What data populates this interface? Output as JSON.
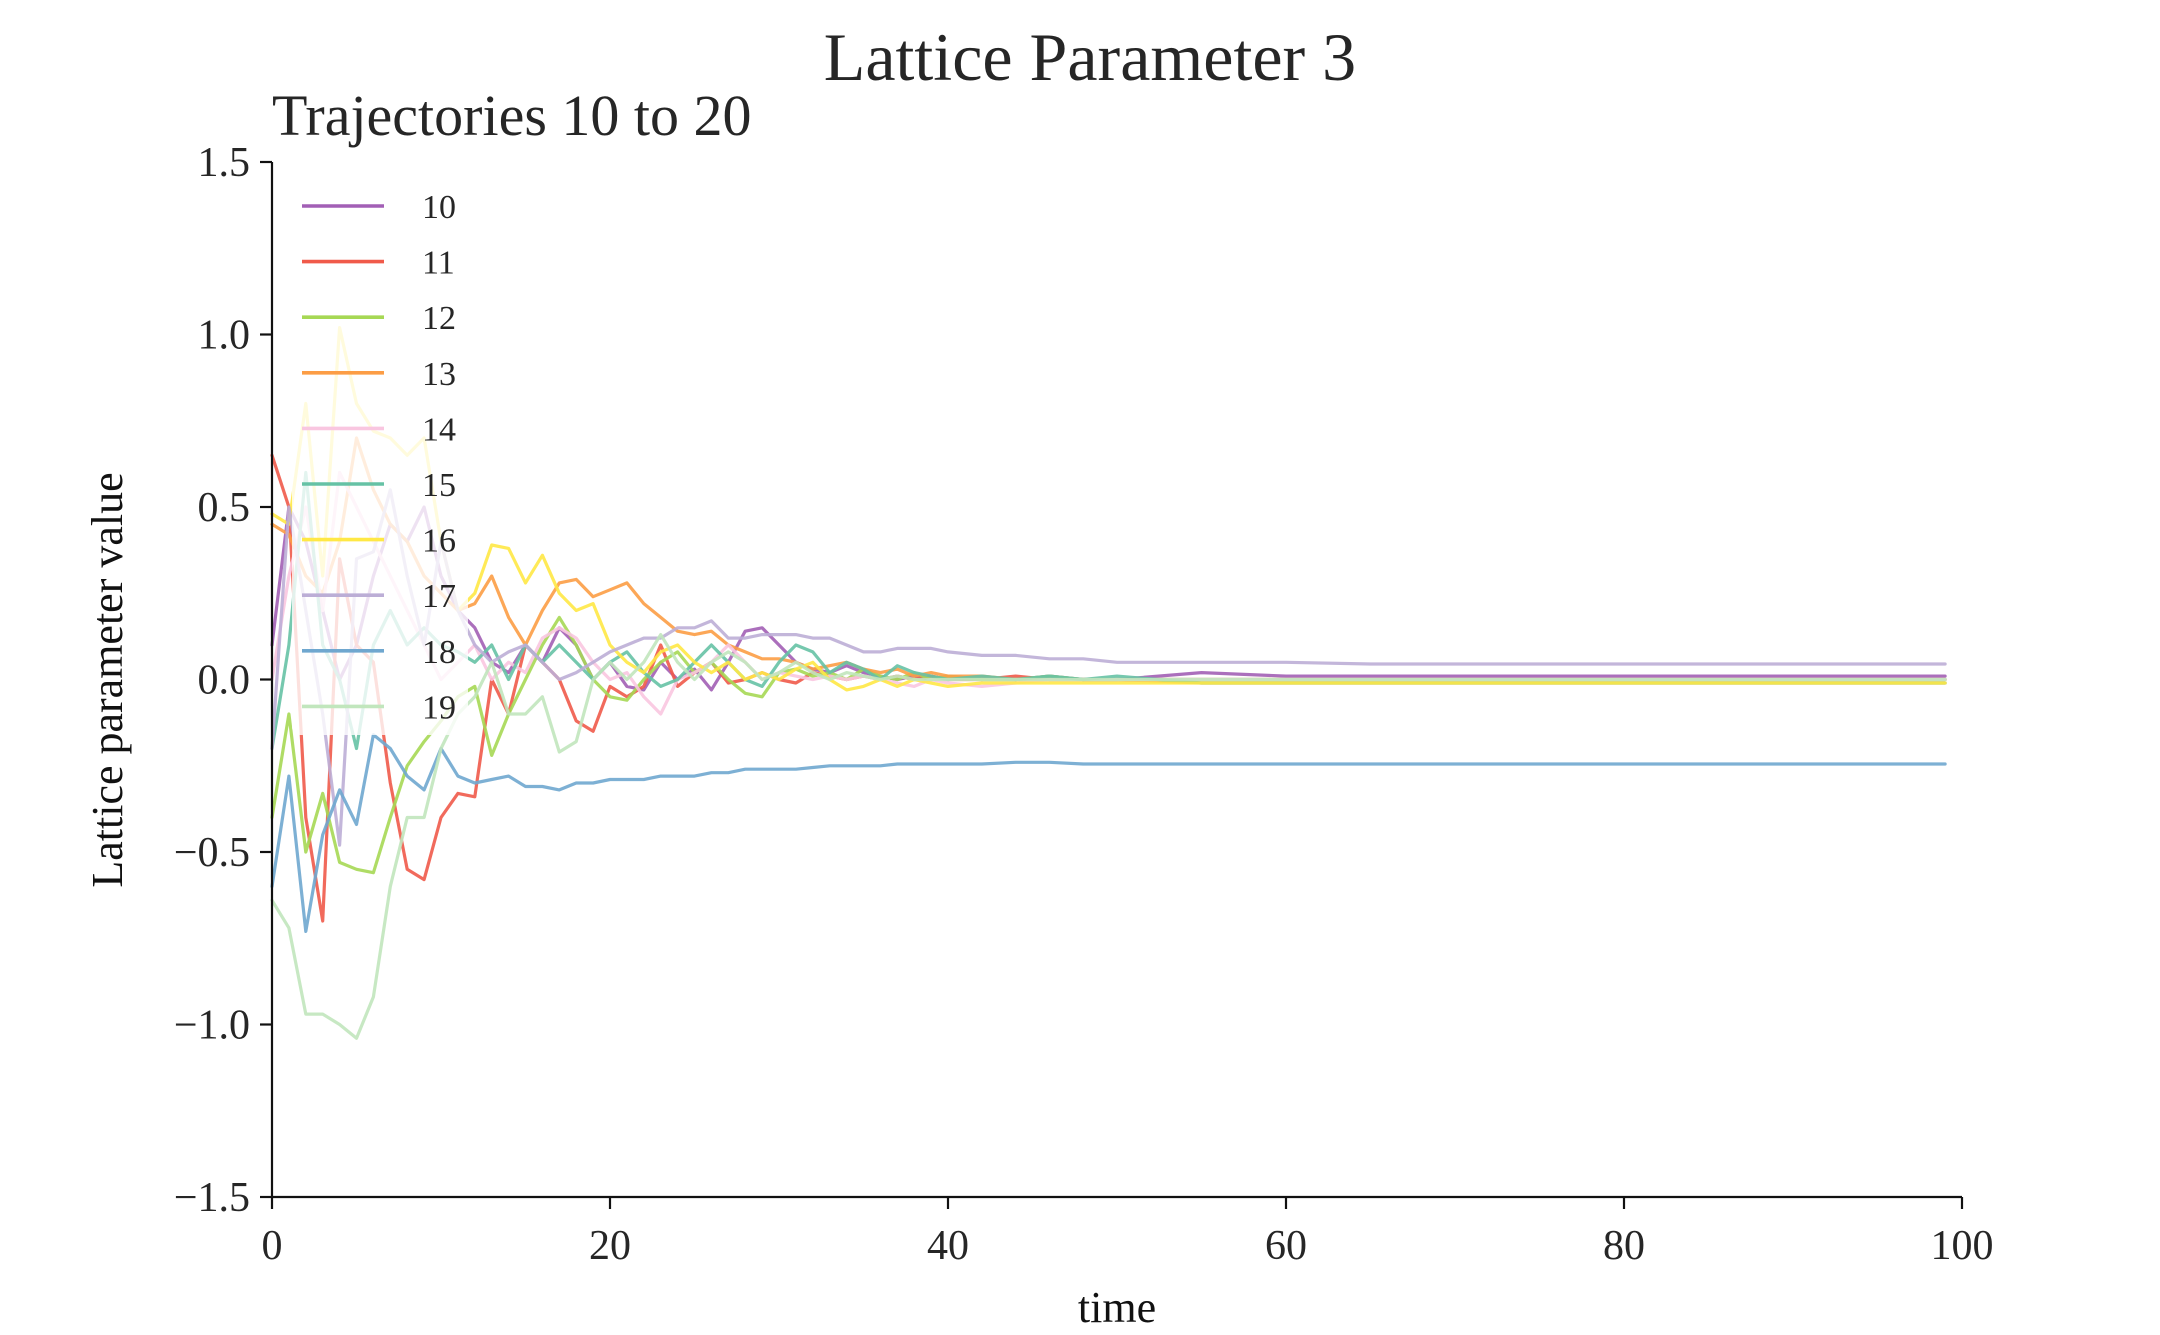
{
  "chart_data": {
    "type": "line",
    "title": "Lattice Parameter 3",
    "subtitle": "Trajectories 10 to 20",
    "xlabel": "time",
    "ylabel": "Lattice parameter value",
    "xlim": [
      0,
      100
    ],
    "ylim": [
      -1.5,
      1.5
    ],
    "xticks": [
      0,
      20,
      40,
      60,
      80,
      100
    ],
    "yticks": [
      -1.5,
      -1.0,
      -0.5,
      0.0,
      0.5,
      1.0,
      1.5
    ],
    "xtick_labels": [
      "0",
      "20",
      "40",
      "60",
      "80",
      "100"
    ],
    "ytick_labels": [
      "−1.5",
      "−1.0",
      "−0.5",
      "0.0",
      "0.5",
      "1.0",
      "1.5"
    ],
    "grid": false,
    "legend_position": "upper-left",
    "x": [
      0,
      1,
      2,
      3,
      4,
      5,
      6,
      7,
      8,
      9,
      10,
      11,
      12,
      13,
      14,
      15,
      16,
      17,
      18,
      19,
      20,
      21,
      22,
      23,
      24,
      25,
      26,
      27,
      28,
      29,
      30,
      31,
      32,
      33,
      34,
      35,
      36,
      37,
      38,
      39,
      40,
      42,
      44,
      46,
      48,
      50,
      55,
      60,
      65,
      70,
      75,
      80,
      85,
      90,
      95,
      99
    ],
    "series": [
      {
        "name": "10",
        "color": "#a25fb5",
        "values": [
          0.1,
          0.5,
          0.4,
          0.2,
          0.0,
          0.1,
          0.3,
          0.45,
          0.4,
          0.5,
          0.3,
          0.2,
          0.15,
          0.05,
          0.02,
          0.1,
          0.05,
          0.15,
          0.1,
          0.0,
          0.05,
          -0.02,
          -0.03,
          0.05,
          0.0,
          0.03,
          -0.03,
          0.05,
          0.14,
          0.15,
          0.1,
          0.05,
          0.03,
          0.02,
          0.04,
          0.02,
          0.01,
          0.0,
          0.01,
          0.0,
          0.01,
          0.0,
          0.0,
          0.01,
          0.0,
          0.0,
          0.02,
          0.01,
          0.01,
          0.01,
          0.01,
          0.01,
          0.01,
          0.01,
          0.01,
          0.01
        ]
      },
      {
        "name": "11",
        "color": "#f05a4a",
        "values": [
          0.65,
          0.5,
          -0.4,
          -0.7,
          0.35,
          0.1,
          0.05,
          -0.3,
          -0.55,
          -0.58,
          -0.4,
          -0.33,
          -0.34,
          0.0,
          -0.1,
          0.1,
          0.05,
          0.0,
          -0.12,
          -0.15,
          -0.02,
          -0.05,
          -0.02,
          0.1,
          -0.02,
          0.02,
          0.05,
          -0.01,
          0.0,
          0.02,
          0.0,
          -0.01,
          0.02,
          0.01,
          0.0,
          0.01,
          0.0,
          0.01,
          0.0,
          0.01,
          0.0,
          0.0,
          0.01,
          0.0,
          0.0,
          0.0,
          0.0,
          0.0,
          0.0,
          0.0,
          0.0,
          0.0,
          0.0,
          0.0,
          0.0,
          0.0
        ]
      },
      {
        "name": "12",
        "color": "#a6d854",
        "values": [
          -0.4,
          -0.1,
          -0.5,
          -0.33,
          -0.53,
          -0.55,
          -0.56,
          -0.4,
          -0.25,
          -0.18,
          -0.12,
          -0.05,
          -0.02,
          -0.22,
          -0.1,
          0.0,
          0.1,
          0.18,
          0.1,
          0.0,
          -0.05,
          -0.06,
          0.0,
          0.05,
          0.08,
          0.02,
          0.05,
          0.0,
          -0.04,
          -0.05,
          0.02,
          0.03,
          0.01,
          0.02,
          0.0,
          0.03,
          0.01,
          0.0,
          0.02,
          0.0,
          0.01,
          0.0,
          0.0,
          0.01,
          0.0,
          0.0,
          0.0,
          0.0,
          0.0,
          0.0,
          0.0,
          0.0,
          0.0,
          0.0,
          0.0,
          0.0
        ]
      },
      {
        "name": "13",
        "color": "#fc9d45",
        "values": [
          0.45,
          0.42,
          0.3,
          0.25,
          0.4,
          0.7,
          0.55,
          0.45,
          0.4,
          0.3,
          0.25,
          0.2,
          0.22,
          0.3,
          0.18,
          0.1,
          0.2,
          0.28,
          0.29,
          0.24,
          0.26,
          0.28,
          0.22,
          0.18,
          0.14,
          0.13,
          0.14,
          0.1,
          0.08,
          0.06,
          0.06,
          0.05,
          0.03,
          0.04,
          0.05,
          0.03,
          0.02,
          0.03,
          0.01,
          0.02,
          0.01,
          0.01,
          0.0,
          0.0,
          0.0,
          0.0,
          -0.01,
          -0.01,
          -0.01,
          -0.01,
          -0.01,
          -0.01,
          -0.01,
          -0.01,
          -0.01,
          -0.01
        ]
      },
      {
        "name": "14",
        "color": "#f9c6e0",
        "values": [
          0.0,
          0.3,
          0.5,
          0.2,
          0.6,
          0.5,
          0.4,
          0.3,
          0.2,
          0.1,
          0.0,
          0.05,
          0.1,
          0.0,
          0.05,
          0.02,
          0.12,
          0.15,
          0.12,
          0.05,
          0.0,
          0.02,
          -0.05,
          -0.1,
          0.0,
          0.02,
          0.05,
          0.1,
          0.05,
          0.0,
          0.02,
          0.01,
          0.0,
          0.01,
          0.0,
          0.01,
          0.0,
          -0.01,
          -0.02,
          0.0,
          -0.01,
          -0.02,
          -0.01,
          0.0,
          0.0,
          0.0,
          0.0,
          0.0,
          0.0,
          0.0,
          0.0,
          0.0,
          0.0,
          0.0,
          0.0,
          0.0
        ]
      },
      {
        "name": "15",
        "color": "#66c2a5",
        "values": [
          -0.2,
          0.1,
          0.6,
          0.1,
          0.0,
          -0.2,
          0.1,
          0.2,
          0.1,
          0.15,
          0.1,
          0.08,
          0.05,
          0.1,
          0.0,
          0.1,
          0.05,
          0.1,
          0.05,
          0.0,
          0.05,
          0.08,
          0.02,
          -0.02,
          0.0,
          0.05,
          0.1,
          0.05,
          0.0,
          -0.02,
          0.05,
          0.1,
          0.08,
          0.02,
          0.05,
          0.03,
          0.0,
          0.04,
          0.02,
          0.01,
          0.0,
          0.01,
          0.0,
          0.01,
          0.0,
          0.01,
          -0.01,
          -0.01,
          -0.01,
          -0.01,
          -0.01,
          -0.01,
          -0.01,
          -0.01,
          -0.01,
          -0.01
        ]
      },
      {
        "name": "16",
        "color": "#ffe845",
        "values": [
          0.48,
          0.45,
          0.8,
          0.3,
          1.02,
          0.8,
          0.72,
          0.7,
          0.65,
          0.7,
          0.4,
          0.2,
          0.25,
          0.39,
          0.38,
          0.28,
          0.36,
          0.25,
          0.2,
          0.22,
          0.1,
          0.05,
          0.02,
          0.08,
          0.1,
          0.05,
          0.02,
          0.05,
          0.0,
          0.02,
          0.0,
          0.03,
          0.05,
          0.0,
          -0.03,
          -0.02,
          0.0,
          -0.02,
          0.0,
          -0.01,
          -0.02,
          -0.01,
          -0.01,
          -0.01,
          -0.01,
          -0.01,
          -0.01,
          -0.01,
          -0.01,
          -0.01,
          -0.01,
          -0.01,
          -0.01,
          -0.01,
          -0.01,
          -0.01
        ]
      },
      {
        "name": "17",
        "color": "#bcaed6",
        "values": [
          -0.2,
          0.5,
          0.2,
          -0.1,
          -0.48,
          0.35,
          0.37,
          0.55,
          0.3,
          0.1,
          0.4,
          0.2,
          0.1,
          0.05,
          0.08,
          0.1,
          0.05,
          0.0,
          0.02,
          0.05,
          0.08,
          0.1,
          0.12,
          0.12,
          0.15,
          0.15,
          0.17,
          0.12,
          0.12,
          0.13,
          0.13,
          0.13,
          0.12,
          0.12,
          0.1,
          0.08,
          0.08,
          0.09,
          0.09,
          0.09,
          0.08,
          0.07,
          0.07,
          0.06,
          0.06,
          0.05,
          0.05,
          0.05,
          0.045,
          0.045,
          0.045,
          0.045,
          0.045,
          0.045,
          0.045,
          0.045
        ]
      },
      {
        "name": "18",
        "color": "#6fa7cf",
        "values": [
          -0.6,
          -0.28,
          -0.73,
          -0.45,
          -0.32,
          -0.42,
          -0.16,
          -0.2,
          -0.28,
          -0.32,
          -0.2,
          -0.28,
          -0.3,
          -0.29,
          -0.28,
          -0.31,
          -0.31,
          -0.32,
          -0.3,
          -0.3,
          -0.29,
          -0.29,
          -0.29,
          -0.28,
          -0.28,
          -0.28,
          -0.27,
          -0.27,
          -0.26,
          -0.26,
          -0.26,
          -0.26,
          -0.255,
          -0.25,
          -0.25,
          -0.25,
          -0.25,
          -0.245,
          -0.245,
          -0.245,
          -0.245,
          -0.245,
          -0.24,
          -0.24,
          -0.245,
          -0.245,
          -0.245,
          -0.245,
          -0.245,
          -0.245,
          -0.245,
          -0.245,
          -0.245,
          -0.245,
          -0.245,
          -0.245
        ]
      },
      {
        "name": "19",
        "color": "#c1e6bd",
        "values": [
          -0.64,
          -0.72,
          -0.97,
          -0.97,
          -1.0,
          -1.04,
          -0.92,
          -0.6,
          -0.4,
          -0.4,
          -0.2,
          -0.1,
          -0.05,
          0.05,
          -0.1,
          -0.1,
          -0.05,
          -0.21,
          -0.18,
          0.0,
          0.05,
          0.0,
          0.05,
          0.13,
          0.05,
          0.0,
          0.05,
          0.08,
          0.05,
          0.0,
          0.02,
          0.05,
          0.02,
          0.0,
          0.02,
          0.01,
          0.0,
          0.01,
          0.0,
          0.0,
          0.0,
          0.0,
          0.0,
          0.0,
          0.0,
          0.0,
          0.0,
          0.0,
          0.0,
          0.0,
          0.0,
          0.0,
          0.0,
          0.0,
          0.0,
          0.0
        ]
      }
    ]
  }
}
